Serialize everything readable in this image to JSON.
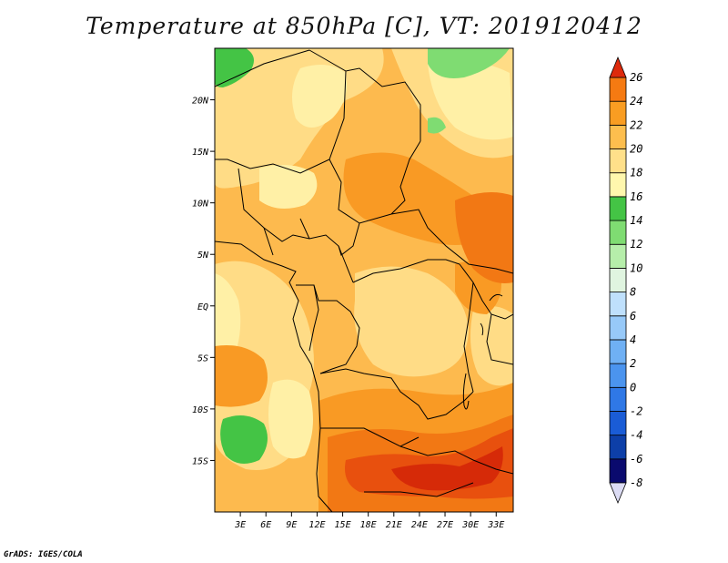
{
  "title": "Temperature at 850hPa [C], VT: 2019120412",
  "credit": "GrADS: IGES/COLA",
  "map": {
    "lon_range": [
      0,
      35
    ],
    "lat_range": [
      -20,
      25
    ],
    "lon_ticks": [
      {
        "value": 3,
        "label": "3E"
      },
      {
        "value": 6,
        "label": "6E"
      },
      {
        "value": 9,
        "label": "9E"
      },
      {
        "value": 12,
        "label": "12E"
      },
      {
        "value": 15,
        "label": "15E"
      },
      {
        "value": 18,
        "label": "18E"
      },
      {
        "value": 21,
        "label": "21E"
      },
      {
        "value": 24,
        "label": "24E"
      },
      {
        "value": 27,
        "label": "27E"
      },
      {
        "value": 30,
        "label": "30E"
      },
      {
        "value": 33,
        "label": "33E"
      }
    ],
    "lat_ticks": [
      {
        "value": 20,
        "label": "20N"
      },
      {
        "value": 15,
        "label": "15N"
      },
      {
        "value": 10,
        "label": "10N"
      },
      {
        "value": 5,
        "label": "5N"
      },
      {
        "value": 0,
        "label": "EQ"
      },
      {
        "value": -5,
        "label": "5S"
      },
      {
        "value": -10,
        "label": "10S"
      },
      {
        "value": -15,
        "label": "15S"
      }
    ]
  },
  "colorbar": {
    "levels": [
      {
        "value": -8,
        "label": "-8",
        "color": "#0a0a6e"
      },
      {
        "value": -6,
        "label": "-6",
        "color": "#0d3fa8"
      },
      {
        "value": -4,
        "label": "-4",
        "color": "#1a5cd6"
      },
      {
        "value": -2,
        "label": "-2",
        "color": "#2f78e6"
      },
      {
        "value": 0,
        "label": "0",
        "color": "#4b94ee"
      },
      {
        "value": 2,
        "label": "2",
        "color": "#6fb0f4"
      },
      {
        "value": 4,
        "label": "4",
        "color": "#97c9f8"
      },
      {
        "value": 6,
        "label": "6",
        "color": "#bfe0fc"
      },
      {
        "value": 8,
        "label": "8",
        "color": "#e0f5e0"
      },
      {
        "value": 10,
        "label": "10",
        "color": "#b6eeaa"
      },
      {
        "value": 12,
        "label": "12",
        "color": "#7fdc72"
      },
      {
        "value": 14,
        "label": "14",
        "color": "#44c445"
      },
      {
        "value": 16,
        "label": "16",
        "color": "#fff7ad"
      },
      {
        "value": 18,
        "label": "18",
        "color": "#ffe08a"
      },
      {
        "value": 20,
        "label": "20",
        "color": "#fdbe4e"
      },
      {
        "value": 22,
        "label": "22",
        "color": "#f99d22"
      },
      {
        "value": 24,
        "label": "24",
        "color": "#f57a12"
      },
      {
        "value": 26,
        "label": "26",
        "color": "#ec5410"
      }
    ],
    "under_color": "#dcdcf4",
    "over_color": "#dd2a0c"
  },
  "field_colors": {
    "t16": "#fff0a6",
    "t18": "#ffdc86",
    "t20": "#fdba4e",
    "t22": "#f99a24",
    "t24": "#f27814",
    "t26": "#e8500e",
    "t28": "#d62a08",
    "g12": "#7fdc72",
    "g14": "#44c445"
  }
}
